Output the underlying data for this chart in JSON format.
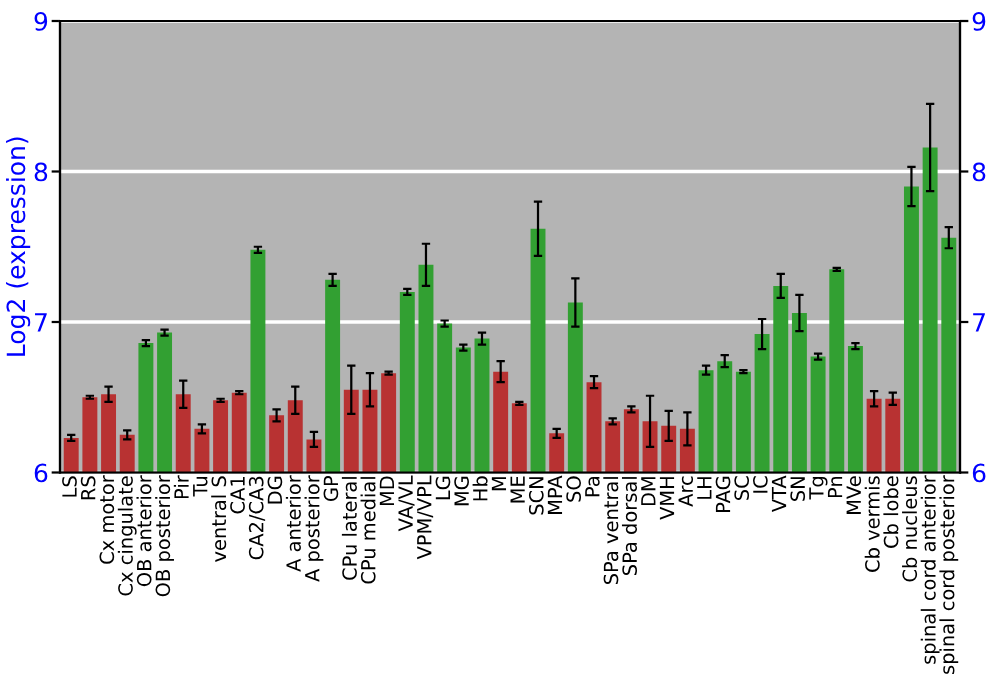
{
  "chart_data": {
    "type": "bar",
    "ylabel": "Log2 (expression)",
    "categories": [
      "LS",
      "RS",
      "Cx motor",
      "Cx cingulate",
      "OB anterior",
      "OB posterior",
      "Pir",
      "Tu",
      "ventral S",
      "CA1",
      "CA2/CA3",
      "DG",
      "A anterior",
      "A posterior",
      "GP",
      "CPu lateral",
      "CPu medial",
      "MD",
      "VA/VL",
      "VPM/VPL",
      "LG",
      "MG",
      "Hb",
      "M",
      "ME",
      "SCN",
      "MPA",
      "SO",
      "Pa",
      "SPa ventral",
      "SPa dorsal",
      "DM",
      "VMH",
      "Arc",
      "LH",
      "PAG",
      "SC",
      "IC",
      "VTA",
      "SN",
      "Tg",
      "Pn",
      "MVe",
      "Cb vermis",
      "Cb lobe",
      "Cb nucleus",
      "spinal cord anterior",
      "spinal cord posterior"
    ],
    "values": [
      6.23,
      6.5,
      6.52,
      6.25,
      6.86,
      6.93,
      6.52,
      6.29,
      6.48,
      6.53,
      7.48,
      6.38,
      6.48,
      6.22,
      7.28,
      6.55,
      6.55,
      6.66,
      7.2,
      7.38,
      6.99,
      6.83,
      6.89,
      6.67,
      6.46,
      7.62,
      6.26,
      7.13,
      6.6,
      6.34,
      6.42,
      6.34,
      6.31,
      6.29,
      6.68,
      6.74,
      6.67,
      6.92,
      7.24,
      7.06,
      6.77,
      7.35,
      6.84,
      6.49,
      6.49,
      7.9,
      8.16,
      7.56
    ],
    "errors": [
      0.02,
      0.01,
      0.05,
      0.03,
      0.02,
      0.02,
      0.09,
      0.03,
      0.01,
      0.01,
      0.02,
      0.04,
      0.09,
      0.05,
      0.04,
      0.16,
      0.11,
      0.01,
      0.02,
      0.14,
      0.02,
      0.02,
      0.04,
      0.07,
      0.01,
      0.18,
      0.03,
      0.16,
      0.04,
      0.02,
      0.02,
      0.17,
      0.1,
      0.11,
      0.03,
      0.04,
      0.01,
      0.1,
      0.08,
      0.12,
      0.02,
      0.01,
      0.02,
      0.05,
      0.04,
      0.13,
      0.29,
      0.07
    ],
    "colors": [
      "#b83232",
      "#b83232",
      "#b83232",
      "#b83232",
      "#32a032",
      "#32a032",
      "#b83232",
      "#b83232",
      "#b83232",
      "#b83232",
      "#32a032",
      "#b83232",
      "#b83232",
      "#b83232",
      "#32a032",
      "#b83232",
      "#b83232",
      "#b83232",
      "#32a032",
      "#32a032",
      "#32a032",
      "#32a032",
      "#32a032",
      "#b83232",
      "#b83232",
      "#32a032",
      "#b83232",
      "#32a032",
      "#b83232",
      "#b83232",
      "#b83232",
      "#b83232",
      "#b83232",
      "#b83232",
      "#32a032",
      "#32a032",
      "#32a032",
      "#32a032",
      "#32a032",
      "#32a032",
      "#32a032",
      "#32a032",
      "#32a032",
      "#b83232",
      "#b83232",
      "#32a032",
      "#32a032",
      "#32a032"
    ],
    "ylim": [
      6,
      9
    ],
    "yticks": [
      6,
      7,
      8,
      9
    ],
    "y2lim": [
      6,
      9
    ],
    "y2ticks": [
      6,
      7,
      8,
      9
    ],
    "grid": "y"
  }
}
